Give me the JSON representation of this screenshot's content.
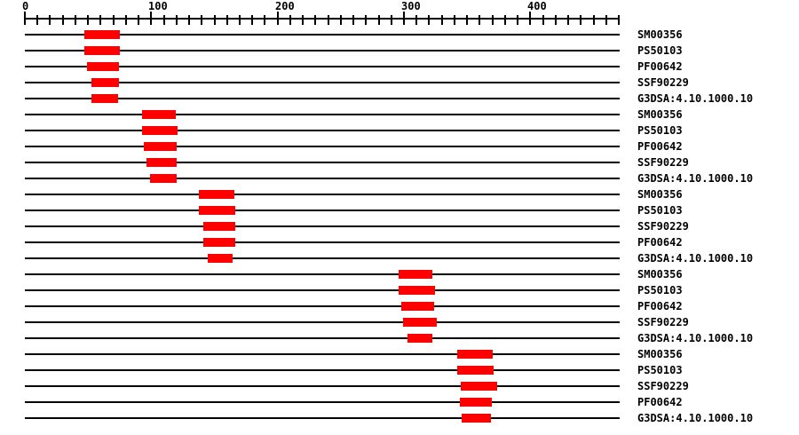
{
  "chart_data": {
    "type": "bar",
    "variant": "horizontal-range-domain-track",
    "title": "",
    "axis": {
      "min": 0,
      "max": 470,
      "minor_tick_interval": 10,
      "major_tick_interval": 100,
      "major_tick_labels": [
        "0",
        "100",
        "200",
        "300",
        "400"
      ]
    },
    "legend": null,
    "grid": false,
    "colors": {
      "bar": "#ff0000",
      "line": "#000000",
      "text": "#000000",
      "background": "#ffffff"
    },
    "rows": [
      {
        "label": "SM00356",
        "start": 47,
        "end": 75
      },
      {
        "label": "PS50103",
        "start": 47,
        "end": 75
      },
      {
        "label": "PF00642",
        "start": 49,
        "end": 74
      },
      {
        "label": "SSF90229",
        "start": 53,
        "end": 75
      },
      {
        "label": "G3DSA:4.10.1000.10",
        "start": 53,
        "end": 74
      },
      {
        "label": "SM00356",
        "start": 93,
        "end": 120
      },
      {
        "label": "PS50103",
        "start": 93,
        "end": 121
      },
      {
        "label": "PF00642",
        "start": 94,
        "end": 120
      },
      {
        "label": "SSF90229",
        "start": 96,
        "end": 120
      },
      {
        "label": "G3DSA:4.10.1000.10",
        "start": 99,
        "end": 120
      },
      {
        "label": "SM00356",
        "start": 138,
        "end": 166
      },
      {
        "label": "PS50103",
        "start": 138,
        "end": 167
      },
      {
        "label": "SSF90229",
        "start": 141,
        "end": 166
      },
      {
        "label": "PF00642",
        "start": 141,
        "end": 166
      },
      {
        "label": "G3DSA:4.10.1000.10",
        "start": 145,
        "end": 165
      },
      {
        "label": "SM00356",
        "start": 296,
        "end": 323
      },
      {
        "label": "PS50103",
        "start": 296,
        "end": 325
      },
      {
        "label": "PF00642",
        "start": 298,
        "end": 324
      },
      {
        "label": "SSF90229",
        "start": 299,
        "end": 326
      },
      {
        "label": "G3DSA:4.10.1000.10",
        "start": 303,
        "end": 323
      },
      {
        "label": "SM00356",
        "start": 342,
        "end": 370
      },
      {
        "label": "PS50103",
        "start": 342,
        "end": 371
      },
      {
        "label": "SSF90229",
        "start": 345,
        "end": 374
      },
      {
        "label": "PF00642",
        "start": 344,
        "end": 369
      },
      {
        "label": "G3DSA:4.10.1000.10",
        "start": 346,
        "end": 369
      }
    ]
  }
}
